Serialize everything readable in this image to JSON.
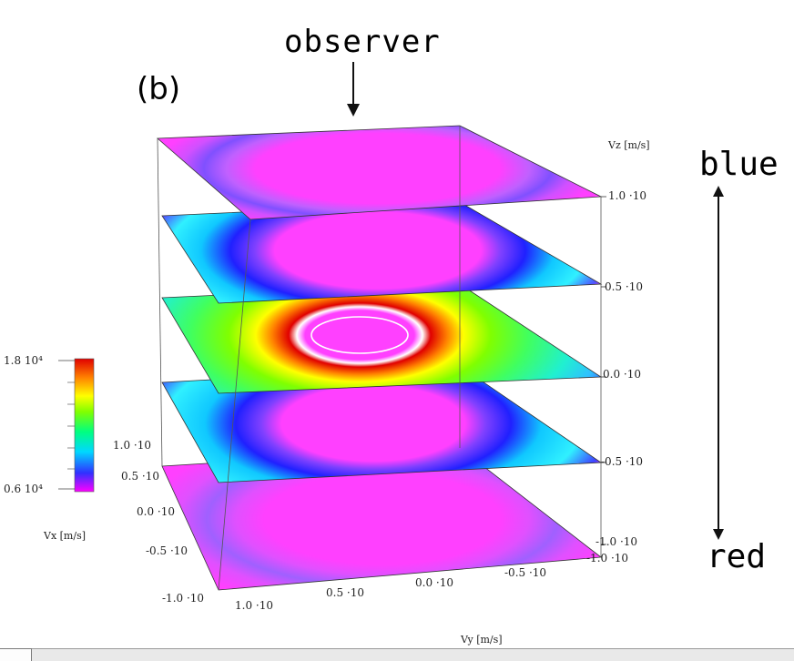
{
  "figure": {
    "panel_label": "(b)",
    "observer_label": "observer",
    "blue_label": "blue",
    "red_label": "red"
  },
  "vz_axis": {
    "name": "Vz [m/s]",
    "ticks": [
      "1.0 ·10",
      "0.5 ·10",
      "0.0 ·10",
      "-0.5 ·10",
      "-1.0 ·10"
    ]
  },
  "vx_axis": {
    "ticks": [
      "1.0 ·10",
      "0.5 ·10",
      "0.0 ·10",
      "-0.5 ·10",
      "-1.0 ·10"
    ]
  },
  "vy_axis": {
    "name": "Vy [m/s]",
    "ticks": [
      "1.0 ·10",
      "0.5 ·10",
      "0.0 ·10",
      "-0.5 ·10",
      "-1.0 ·10"
    ]
  },
  "colorbar": {
    "max_label": "1.8 10⁴",
    "min_label": "0.6 10⁴",
    "name": "Vx [m/s]",
    "colors": [
      "#ff00ff",
      "#3030ff",
      "#00d8ff",
      "#00ff80",
      "#80ff00",
      "#ffff00",
      "#ff8000",
      "#e00000"
    ]
  },
  "slices": [
    {
      "level": "top"
    },
    {
      "level": "upper"
    },
    {
      "level": "middle"
    },
    {
      "level": "lower"
    },
    {
      "level": "bottom"
    }
  ]
}
